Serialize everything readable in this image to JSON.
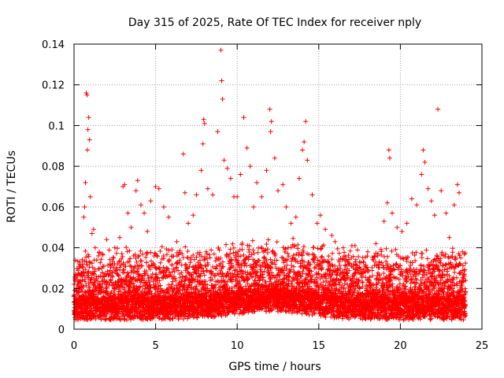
{
  "chart_data": {
    "type": "scatter",
    "title": "Day 315 of 2025, Rate Of TEC Index for receiver nply",
    "xlabel": "GPS time / hours",
    "ylabel": "ROTI / TECUs",
    "xlim": [
      0,
      25
    ],
    "ylim": [
      0,
      0.14
    ],
    "xticks": [
      0,
      5,
      10,
      15,
      20,
      25
    ],
    "xtick_labels": [
      "0",
      "5",
      "10",
      "15",
      "20",
      "25"
    ],
    "yticks": [
      0,
      0.02,
      0.04,
      0.06,
      0.08,
      0.1,
      0.12,
      0.14
    ],
    "ytick_labels": [
      "0",
      "0.02",
      "0.04",
      "0.06",
      "0.08",
      "0.1",
      "0.12",
      "0.14"
    ],
    "grid": true,
    "marker": "plus",
    "color": "#ff0000",
    "x_data_extent": [
      0,
      24
    ],
    "series": [
      {
        "values": [
          [
            0.0,
            0.016
          ],
          [
            0.1,
            0.027
          ],
          [
            0.2,
            0.022
          ],
          [
            0.3,
            0.018
          ],
          [
            0.4,
            0.031
          ],
          [
            0.5,
            0.024
          ],
          [
            0.6,
            0.055
          ],
          [
            0.65,
            0.06
          ],
          [
            0.7,
            0.072
          ],
          [
            0.75,
            0.116
          ],
          [
            0.8,
            0.115
          ],
          [
            0.82,
            0.088
          ],
          [
            0.85,
            0.098
          ],
          [
            0.9,
            0.104
          ],
          [
            0.95,
            0.093
          ],
          [
            1.0,
            0.065
          ],
          [
            1.1,
            0.047
          ],
          [
            1.2,
            0.049
          ],
          [
            1.3,
            0.04
          ],
          [
            1.5,
            0.036
          ],
          [
            1.7,
            0.03
          ],
          [
            2.0,
            0.044
          ],
          [
            2.2,
            0.032
          ],
          [
            2.5,
            0.04
          ],
          [
            2.8,
            0.045
          ],
          [
            3.0,
            0.07
          ],
          [
            3.1,
            0.071
          ],
          [
            3.3,
            0.057
          ],
          [
            3.5,
            0.05
          ],
          [
            3.8,
            0.068
          ],
          [
            3.9,
            0.073
          ],
          [
            4.1,
            0.061
          ],
          [
            4.3,
            0.057
          ],
          [
            4.5,
            0.048
          ],
          [
            4.7,
            0.063
          ],
          [
            5.0,
            0.07
          ],
          [
            5.2,
            0.069
          ],
          [
            5.5,
            0.06
          ],
          [
            5.8,
            0.055
          ],
          [
            6.0,
            0.039
          ],
          [
            6.3,
            0.043
          ],
          [
            6.7,
            0.086
          ],
          [
            6.8,
            0.067
          ],
          [
            7.0,
            0.052
          ],
          [
            7.3,
            0.056
          ],
          [
            7.5,
            0.066
          ],
          [
            7.8,
            0.078
          ],
          [
            7.9,
            0.091
          ],
          [
            7.95,
            0.103
          ],
          [
            8.0,
            0.101
          ],
          [
            8.2,
            0.069
          ],
          [
            8.5,
            0.066
          ],
          [
            8.8,
            0.097
          ],
          [
            9.0,
            0.137
          ],
          [
            9.05,
            0.122
          ],
          [
            9.1,
            0.113
          ],
          [
            9.2,
            0.083
          ],
          [
            9.4,
            0.079
          ],
          [
            9.6,
            0.074
          ],
          [
            9.8,
            0.065
          ],
          [
            10.0,
            0.065
          ],
          [
            10.2,
            0.076
          ],
          [
            10.4,
            0.104
          ],
          [
            10.6,
            0.089
          ],
          [
            10.8,
            0.08
          ],
          [
            11.0,
            0.06
          ],
          [
            11.2,
            0.072
          ],
          [
            11.5,
            0.065
          ],
          [
            11.8,
            0.078
          ],
          [
            12.0,
            0.108
          ],
          [
            12.05,
            0.097
          ],
          [
            12.1,
            0.102
          ],
          [
            12.3,
            0.084
          ],
          [
            12.5,
            0.068
          ],
          [
            12.8,
            0.071
          ],
          [
            13.0,
            0.06
          ],
          [
            13.3,
            0.052
          ],
          [
            13.6,
            0.055
          ],
          [
            13.8,
            0.074
          ],
          [
            14.0,
            0.088
          ],
          [
            14.1,
            0.092
          ],
          [
            14.2,
            0.102
          ],
          [
            14.3,
            0.083
          ],
          [
            14.6,
            0.066
          ],
          [
            14.9,
            0.052
          ],
          [
            15.1,
            0.056
          ],
          [
            15.4,
            0.049
          ],
          [
            15.8,
            0.046
          ],
          [
            16.0,
            0.043
          ],
          [
            16.5,
            0.04
          ],
          [
            17.0,
            0.035
          ],
          [
            17.5,
            0.033
          ],
          [
            18.0,
            0.038
          ],
          [
            18.5,
            0.042
          ],
          [
            19.0,
            0.053
          ],
          [
            19.2,
            0.062
          ],
          [
            19.3,
            0.088
          ],
          [
            19.35,
            0.084
          ],
          [
            19.5,
            0.057
          ],
          [
            19.8,
            0.05
          ],
          [
            20.1,
            0.048
          ],
          [
            20.4,
            0.052
          ],
          [
            20.7,
            0.064
          ],
          [
            21.0,
            0.061
          ],
          [
            21.3,
            0.076
          ],
          [
            21.4,
            0.088
          ],
          [
            21.5,
            0.082
          ],
          [
            21.7,
            0.069
          ],
          [
            21.9,
            0.063
          ],
          [
            22.1,
            0.056
          ],
          [
            22.3,
            0.108
          ],
          [
            22.5,
            0.068
          ],
          [
            22.8,
            0.057
          ],
          [
            23.0,
            0.045
          ],
          [
            23.3,
            0.061
          ],
          [
            23.5,
            0.071
          ],
          [
            23.6,
            0.067
          ],
          [
            23.8,
            0.038
          ],
          [
            24.0,
            0.024
          ]
        ]
      }
    ]
  }
}
